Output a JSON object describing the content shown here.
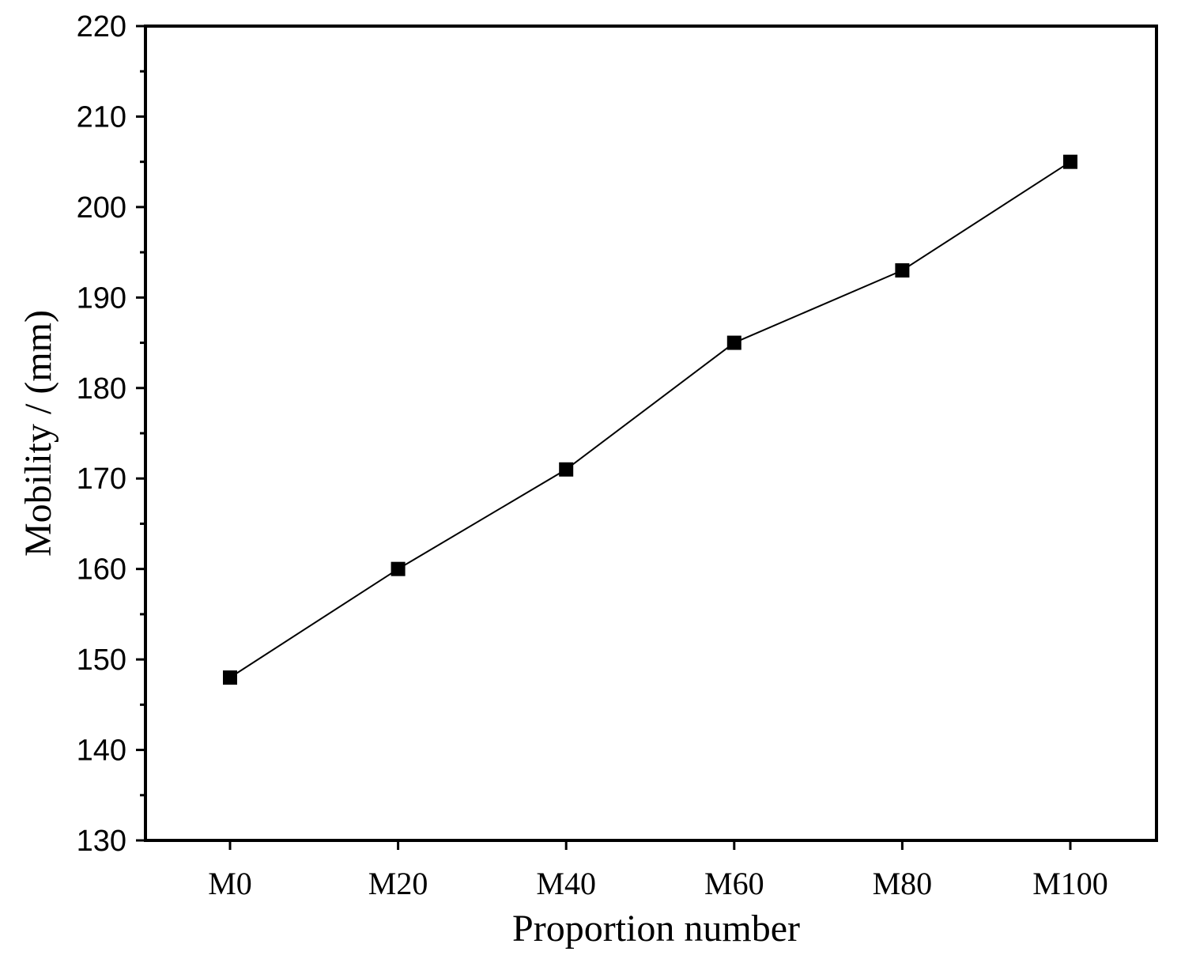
{
  "chart_data": {
    "type": "line",
    "title": "",
    "xlabel": "Proportion number",
    "ylabel": "Mobility / (mm)",
    "categories": [
      "M0",
      "M20",
      "M40",
      "M60",
      "M80",
      "M100"
    ],
    "series": [
      {
        "values": [
          148,
          160,
          171,
          185,
          193,
          205
        ],
        "marker": "square",
        "color": "#000000"
      }
    ],
    "ylim": [
      130,
      220
    ],
    "yticks": [
      "130",
      "140",
      "150",
      "160",
      "170",
      "180",
      "190",
      "200",
      "210",
      "220"
    ],
    "y_minor_ticks": true,
    "grid": false,
    "legend": "none"
  }
}
